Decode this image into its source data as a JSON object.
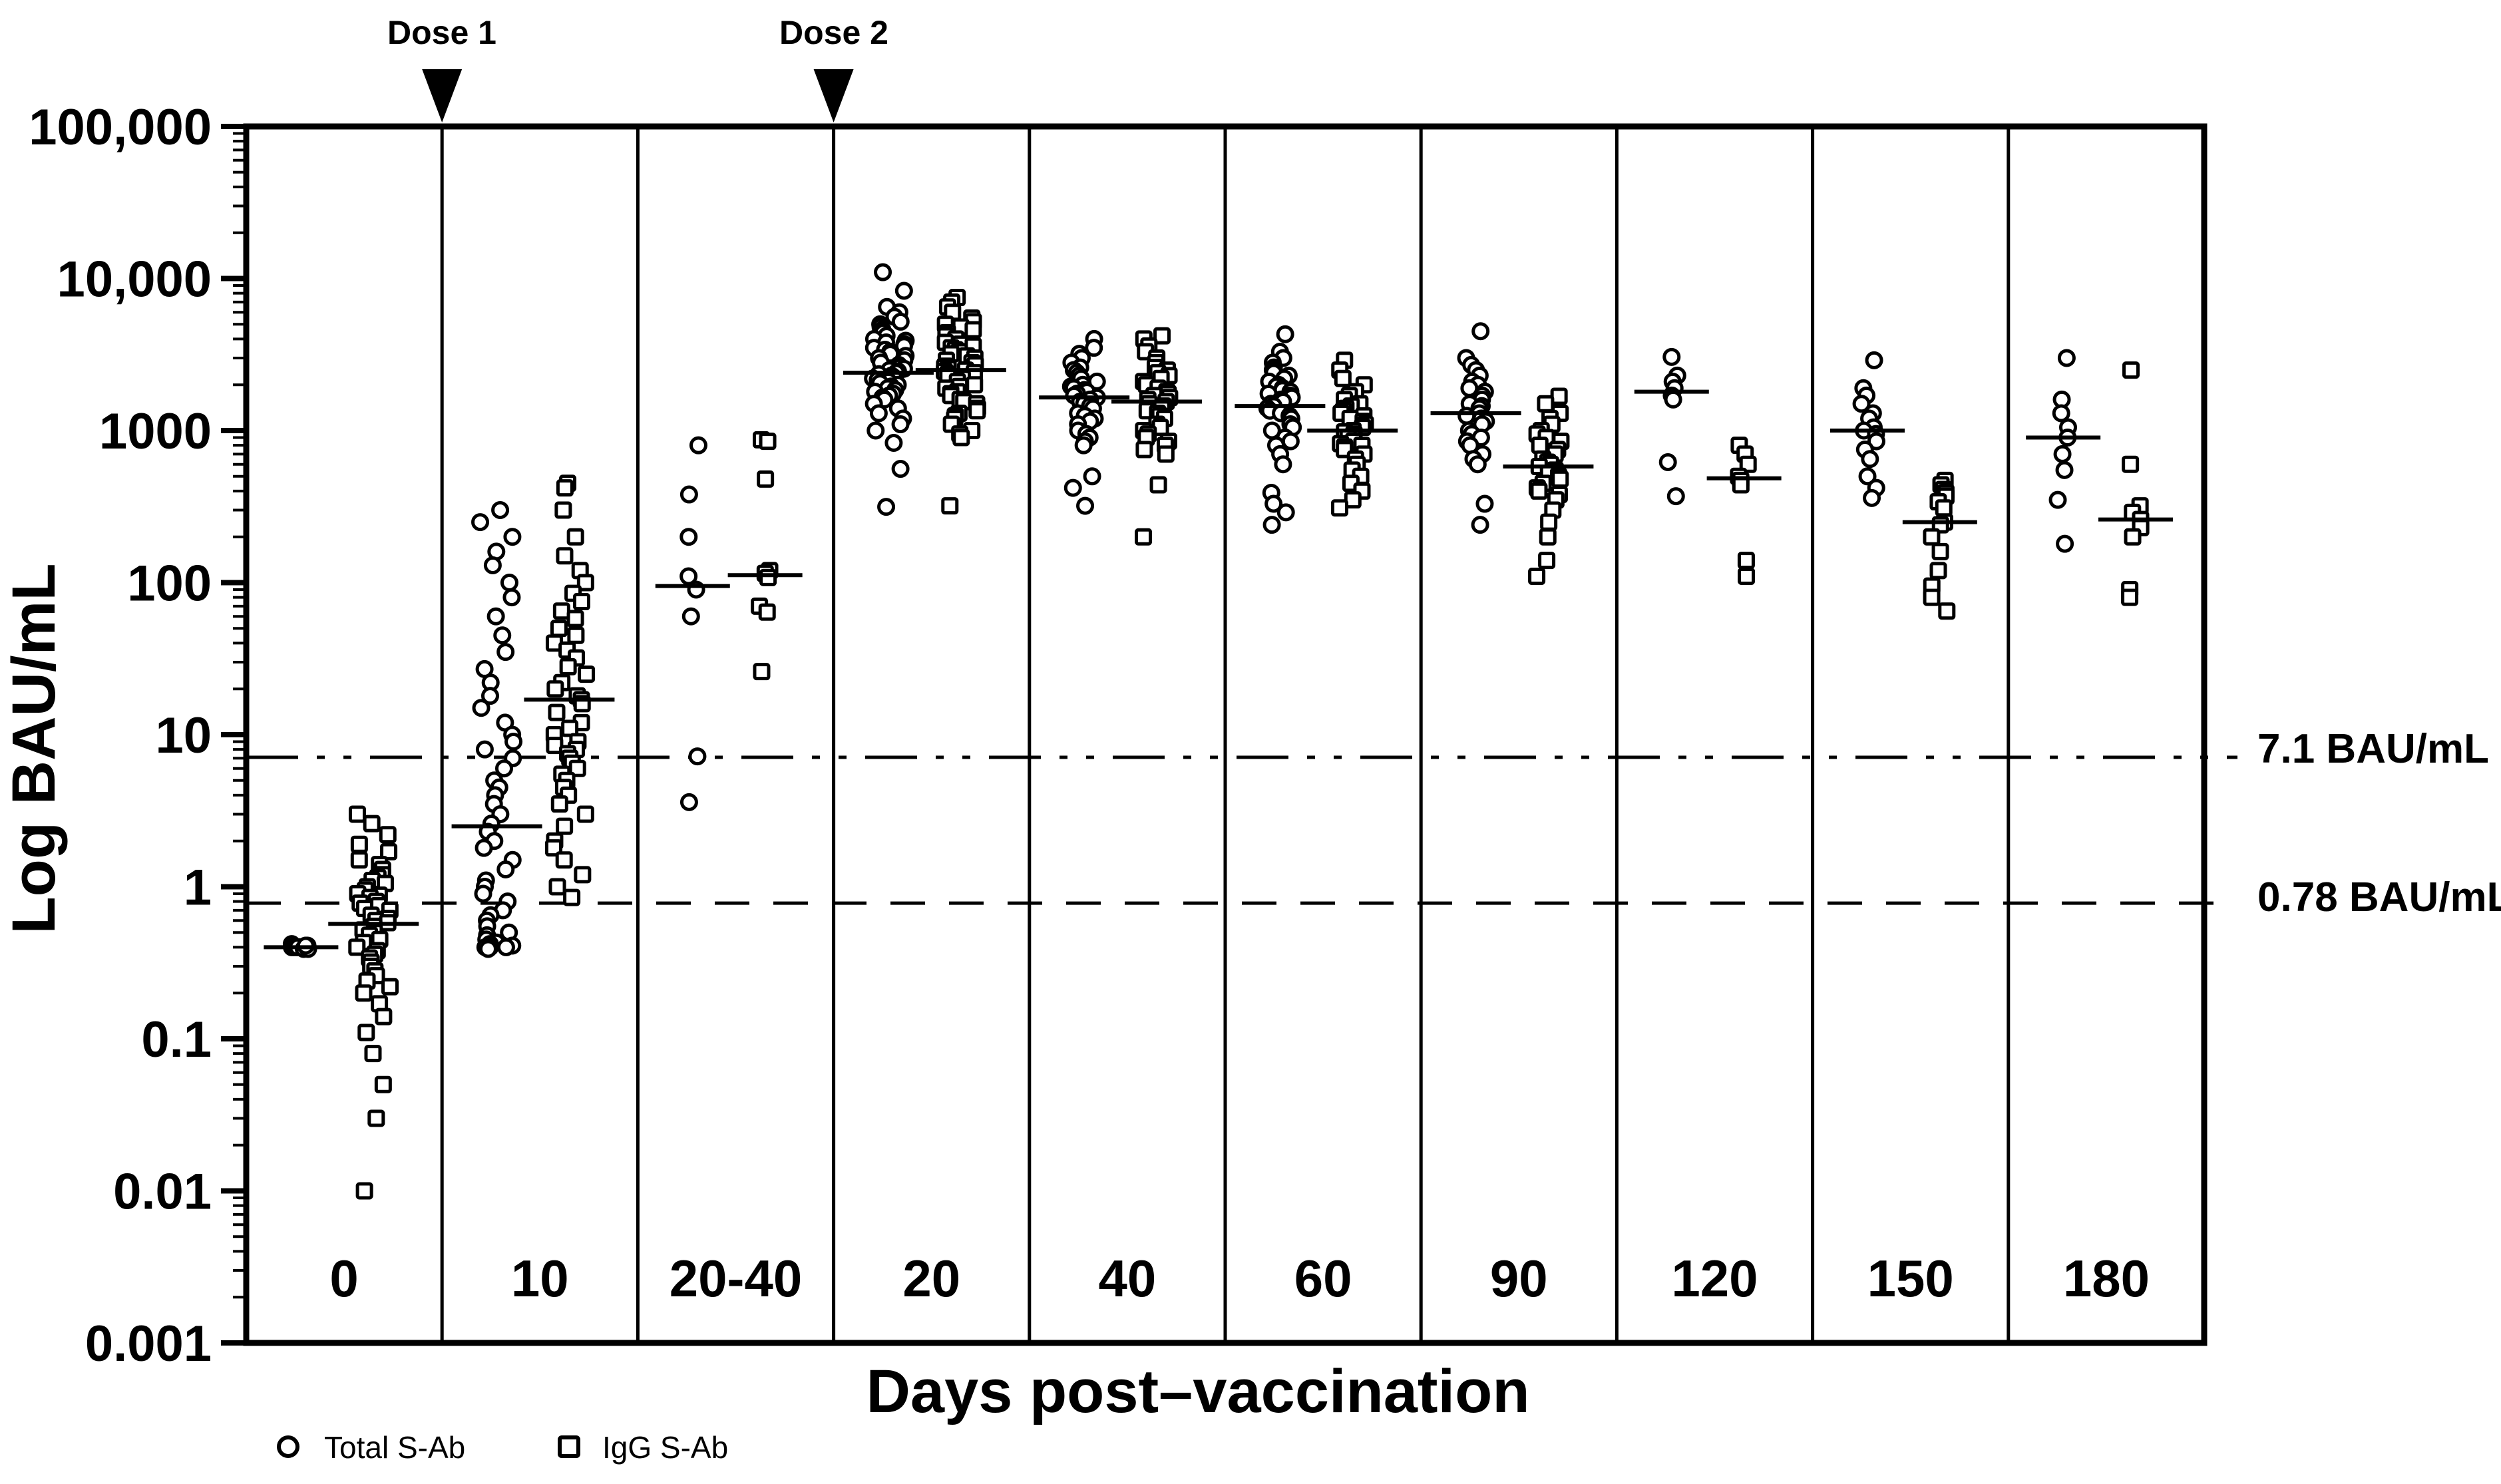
{
  "colors": {
    "ink": "#000000",
    "background": "#ffffff"
  },
  "chart_data": {
    "type": "scatter",
    "title": "",
    "xlabel": "Days post–vaccination",
    "ylabel": "Log BAU/mL",
    "y_axis": {
      "scale": "log",
      "min": 0.001,
      "max": 100000,
      "tick_values": [
        100000,
        10000,
        1000,
        100,
        10,
        1,
        0.1,
        0.01,
        0.001
      ],
      "tick_labels": [
        "100,000",
        "10,000",
        "1000",
        "100",
        "10",
        "1",
        "0.1",
        "0.01",
        "0.001"
      ],
      "minor_ticks": "log mantissas 2-9 per decade",
      "grid": false
    },
    "x_axis": {
      "label": "Days post–vaccination",
      "categories": [
        "0",
        "10",
        "20-40",
        "20",
        "40",
        "60",
        "90",
        "120",
        "150",
        "180"
      ]
    },
    "ref_lines": [
      {
        "value": 7.1,
        "label": "7.1 BAU/mL",
        "style": "dash-dot-dot"
      },
      {
        "value": 0.78,
        "label": "0.78 BAU/mL",
        "style": "dashed"
      }
    ],
    "annotations": [
      {
        "label": "Dose 1",
        "at_boundary": 1,
        "marker": "filled-down-triangle"
      },
      {
        "label": "Dose 2",
        "at_boundary": 3,
        "marker": "filled-down-triangle"
      }
    ],
    "legend": [
      {
        "marker": "circle",
        "label": "Total S-Ab"
      },
      {
        "marker": "square",
        "label": "IgG S-Ab"
      }
    ],
    "legend_position": "bottom-left",
    "panels": [
      {
        "label": "0",
        "series": {
          "total_sab": {
            "median": 0.4,
            "values": [
              0.42,
              0.41,
              0.41,
              0.4,
              0.4,
              0.4,
              0.4,
              0.4,
              0.4,
              0.39,
              0.39,
              0.41
            ]
          },
          "igg_sab": {
            "median": 0.57,
            "values": [
              3,
              2.6,
              2.2,
              1.9,
              1.7,
              1.5,
              1.4,
              1.3,
              1.2,
              1.15,
              1.1,
              1.05,
              1,
              0.95,
              0.9,
              0.88,
              0.85,
              0.8,
              0.78,
              0.75,
              0.72,
              0.7,
              0.65,
              0.62,
              0.6,
              0.58,
              0.55,
              0.52,
              0.5,
              0.48,
              0.45,
              0.43,
              0.4,
              0.38,
              0.36,
              0.34,
              0.32,
              0.3,
              0.28,
              0.26,
              0.24,
              0.22,
              0.2,
              0.17,
              0.14,
              0.11,
              0.08,
              0.05,
              0.03,
              0.01
            ]
          }
        }
      },
      {
        "label": "10",
        "series": {
          "total_sab": {
            "median": 2.5,
            "values": [
              300,
              250,
              200,
              160,
              130,
              100,
              80,
              60,
              45,
              35,
              27,
              22,
              18,
              15,
              12,
              10,
              9,
              8,
              7,
              6,
              5,
              4.5,
              4,
              3.5,
              3,
              2.6,
              2.3,
              2,
              1.8,
              1.5,
              1.3,
              1.1,
              1,
              0.9,
              0.8,
              0.7,
              0.65,
              0.6,
              0.55,
              0.5,
              0.48,
              0.45,
              0.43,
              0.42,
              0.41,
              0.4,
              0.4,
              0.4,
              0.4,
              0.39
            ]
          },
          "igg_sab": {
            "median": 17,
            "values": [
              450,
              420,
              300,
              200,
              150,
              120,
              100,
              85,
              75,
              65,
              58,
              50,
              45,
              40,
              36,
              32,
              28,
              25,
              22,
              20,
              18,
              17,
              16,
              14,
              12,
              11,
              10,
              9,
              8.5,
              8,
              7.5,
              7,
              6.5,
              6,
              5.5,
              5,
              4.5,
              4,
              3.5,
              3,
              2.5,
              2,
              1.8,
              1.5,
              1.2,
              1,
              0.85
            ]
          }
        }
      },
      {
        "label": "20-40",
        "series": {
          "total_sab": {
            "median": 95,
            "values": [
              800,
              380,
              200,
              110,
              90,
              60,
              7.2,
              3.6
            ]
          },
          "igg_sab": {
            "median": 112,
            "values": [
              870,
              850,
              480,
              120,
              115,
              108,
              70,
              64,
              26
            ]
          }
        }
      },
      {
        "label": "20",
        "series": {
          "total_sab": {
            "median": 2400,
            "values": [
              11000,
              8300,
              6500,
              6000,
              5600,
              5200,
              5000,
              4800,
              4600,
              4400,
              4200,
              4000,
              3900,
              3800,
              3700,
              3600,
              3500,
              3400,
              3300,
              3200,
              3100,
              3000,
              2900,
              2800,
              2700,
              2600,
              2550,
              2500,
              2450,
              2400,
              2350,
              2300,
              2250,
              2200,
              2150,
              2100,
              2050,
              2000,
              1950,
              1900,
              1850,
              1800,
              1750,
              1700,
              1650,
              1600,
              1500,
              1400,
              1300,
              1200,
              1100,
              1000,
              830,
              560,
              315
            ]
          },
          "igg_sab": {
            "median": 2500,
            "values": [
              7500,
              7000,
              6500,
              6000,
              5500,
              5200,
              5000,
              4800,
              4600,
              4400,
              4200,
              4000,
              3800,
              3700,
              3600,
              3500,
              3400,
              3300,
              3200,
              3100,
              3000,
              2900,
              2800,
              2700,
              2650,
              2600,
              2550,
              2500,
              2450,
              2400,
              2350,
              2300,
              2200,
              2100,
              2000,
              1950,
              1900,
              1800,
              1750,
              1700,
              1600,
              1550,
              1500,
              1400,
              1350,
              1300,
              1250,
              1200,
              1100,
              1000,
              950,
              900,
              320
            ]
          }
        }
      },
      {
        "label": "40",
        "series": {
          "total_sab": {
            "median": 1650,
            "values": [
              4000,
              3500,
              3200,
              3000,
              2800,
              2600,
              2500,
              2400,
              2300,
              2200,
              2100,
              2000,
              1950,
              1900,
              1850,
              1800,
              1750,
              1700,
              1650,
              1600,
              1550,
              1500,
              1450,
              1400,
              1300,
              1250,
              1200,
              1150,
              1100,
              1000,
              950,
              900,
              850,
              800,
              500,
              420,
              320
            ]
          },
          "igg_sab": {
            "median": 1550,
            "values": [
              4200,
              4000,
              3600,
              3300,
              3000,
              2800,
              2600,
              2500,
              2400,
              2300,
              2200,
              2100,
              2000,
              1900,
              1800,
              1750,
              1700,
              1650,
              1600,
              1550,
              1500,
              1450,
              1400,
              1350,
              1300,
              1250,
              1200,
              1100,
              1050,
              1000,
              950,
              900,
              850,
              800,
              750,
              700,
              440,
              200
            ]
          }
        }
      },
      {
        "label": "60",
        "series": {
          "total_sab": {
            "median": 1450,
            "values": [
              4300,
              3300,
              3000,
              2800,
              2600,
              2500,
              2400,
              2300,
              2200,
              2100,
              2000,
              1950,
              1900,
              1850,
              1800,
              1750,
              1700,
              1650,
              1600,
              1550,
              1500,
              1450,
              1400,
              1350,
              1300,
              1250,
              1200,
              1100,
              1050,
              1000,
              900,
              850,
              800,
              700,
              600,
              390,
              330,
              290,
              240
            ]
          },
          "igg_sab": {
            "median": 1000,
            "values": [
              2900,
              2500,
              2200,
              2000,
              1800,
              1700,
              1600,
              1500,
              1450,
              1400,
              1350,
              1300,
              1250,
              1200,
              1150,
              1100,
              1050,
              1000,
              980,
              950,
              920,
              900,
              850,
              820,
              800,
              780,
              750,
              700,
              650,
              600,
              550,
              500,
              450,
              400,
              350,
              310
            ]
          }
        }
      },
      {
        "label": "90",
        "series": {
          "total_sab": {
            "median": 1300,
            "values": [
              4500,
              3000,
              2700,
              2500,
              2300,
              2100,
              2000,
              1900,
              1800,
              1700,
              1600,
              1500,
              1450,
              1400,
              1300,
              1250,
              1200,
              1150,
              1100,
              1000,
              950,
              900,
              850,
              800,
              700,
              650,
              600,
              330,
              240
            ]
          },
          "igg_sab": {
            "median": 580,
            "values": [
              1680,
              1500,
              1300,
              1200,
              1100,
              1000,
              950,
              900,
              850,
              800,
              750,
              700,
              650,
              620,
              600,
              580,
              550,
              520,
              500,
              480,
              450,
              420,
              400,
              380,
              350,
              300,
              250,
              200,
              140,
              110
            ]
          }
        }
      },
      {
        "label": "120",
        "series": {
          "total_sab": {
            "median": 1800,
            "values": [
              3050,
              2300,
              2100,
              1900,
              1700,
              1600,
              620,
              370
            ]
          },
          "igg_sab": {
            "median": 485,
            "values": [
              800,
              700,
              600,
              500,
              470,
              440,
              140,
              110
            ]
          }
        }
      },
      {
        "label": "150",
        "series": {
          "total_sab": {
            "median": 1000,
            "values": [
              2900,
              1900,
              1700,
              1500,
              1300,
              1200,
              1050,
              1000,
              950,
              850,
              750,
              650,
              500,
              420,
              360
            ]
          },
          "igg_sab": {
            "median": 250,
            "values": [
              470,
              440,
              410,
              390,
              370,
              340,
              310,
              250,
              240,
              200,
              160,
              120,
              95,
              80,
              65
            ]
          }
        }
      },
      {
        "label": "180",
        "series": {
          "total_sab": {
            "median": 900,
            "values": [
              3000,
              1600,
              1300,
              1050,
              900,
              700,
              550,
              350,
              180
            ]
          },
          "igg_sab": {
            "median": 260,
            "values": [
              2500,
              600,
              320,
              290,
              260,
              230,
              200,
              90,
              80
            ]
          }
        }
      }
    ]
  }
}
